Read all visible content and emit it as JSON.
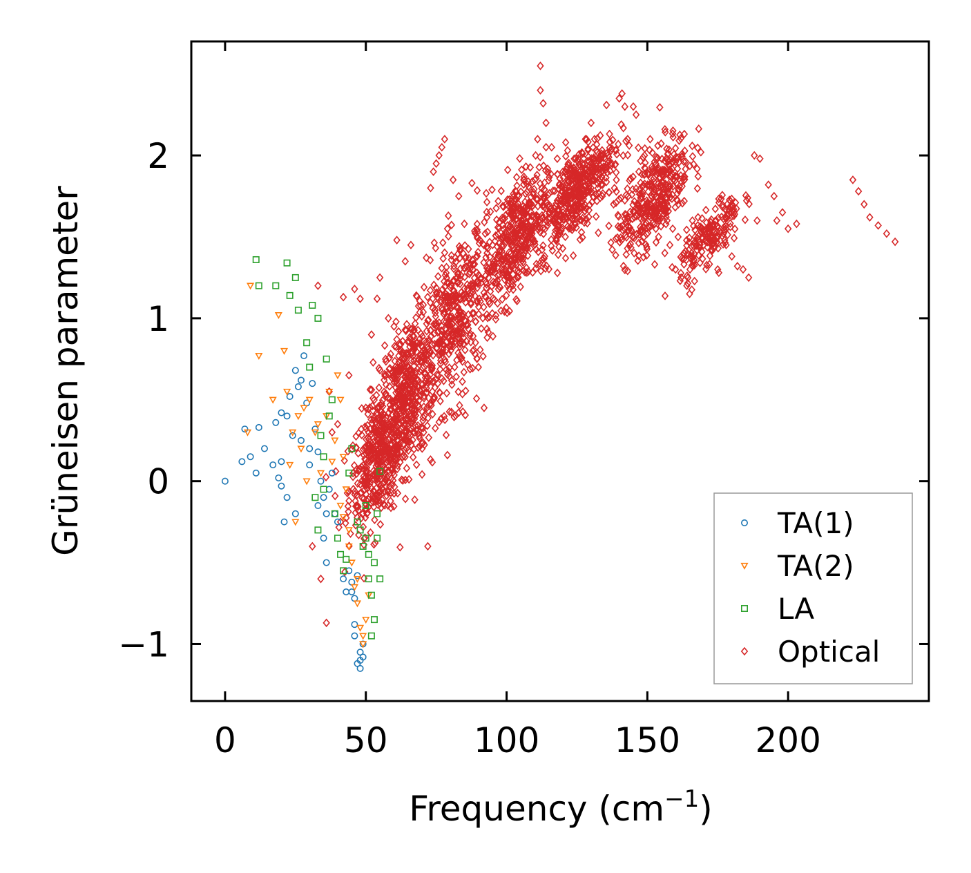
{
  "chart_data": {
    "type": "scatter",
    "title": "",
    "xlabel": "Frequency (cm",
    "xlabel_sup": "−1",
    "xlabel_end": ")",
    "ylabel": "Grüneisen parameter",
    "xlim": [
      -12,
      250
    ],
    "ylim": [
      -1.35,
      2.7
    ],
    "xticks": [
      0,
      50,
      100,
      150,
      200
    ],
    "xtick_labels": [
      "0",
      "50",
      "100",
      "150",
      "200"
    ],
    "yticks": [
      -1,
      0,
      1,
      2
    ],
    "ytick_labels": [
      "−1",
      "0",
      "1",
      "2"
    ],
    "legend_position": "lower-right",
    "series": [
      {
        "name": "TA(1)",
        "color": "#1f77b4",
        "marker": "circle",
        "points": [
          [
            0,
            0
          ],
          [
            6,
            0.12
          ],
          [
            7,
            0.32
          ],
          [
            9,
            0.15
          ],
          [
            11,
            0.05
          ],
          [
            12,
            0.33
          ],
          [
            14,
            0.2
          ],
          [
            17,
            0.1
          ],
          [
            18,
            0.36
          ],
          [
            19,
            0.02
          ],
          [
            20,
            0.42
          ],
          [
            20,
            0.12
          ],
          [
            21,
            -0.25
          ],
          [
            22,
            0.4
          ],
          [
            23,
            0.52
          ],
          [
            24,
            0.28
          ],
          [
            25,
            0.68
          ],
          [
            26,
            0.58
          ],
          [
            27,
            0.62
          ],
          [
            28,
            0.77
          ],
          [
            29,
            0.48
          ],
          [
            30,
            0.2
          ],
          [
            31,
            0.6
          ],
          [
            32,
            0.32
          ],
          [
            33,
            0.18
          ],
          [
            34,
            0.0
          ],
          [
            35,
            -0.1
          ],
          [
            36,
            -0.2
          ],
          [
            37,
            -0.05
          ],
          [
            38,
            0.05
          ],
          [
            44,
            -0.55
          ],
          [
            45,
            -0.62
          ],
          [
            45,
            -0.68
          ],
          [
            46,
            -0.72
          ],
          [
            46,
            -0.88
          ],
          [
            47,
            -0.58
          ],
          [
            48,
            -1.05
          ],
          [
            48,
            -1.1
          ],
          [
            49,
            -1.0
          ],
          [
            49,
            -1.08
          ],
          [
            48,
            -1.15
          ],
          [
            47,
            -1.12
          ],
          [
            46,
            -0.95
          ],
          [
            43,
            -0.68
          ],
          [
            42,
            -0.6
          ],
          [
            20,
            -0.03
          ],
          [
            22,
            -0.1
          ],
          [
            25,
            -0.2
          ],
          [
            27,
            0.25
          ],
          [
            30,
            0.1
          ],
          [
            35,
            -0.35
          ],
          [
            36,
            -0.5
          ],
          [
            33,
            -0.15
          ],
          [
            39,
            -0.2
          ],
          [
            40,
            -0.25
          ]
        ]
      },
      {
        "name": "TA(2)",
        "color": "#ff7f0e",
        "marker": "triangle-down",
        "points": [
          [
            8,
            0.3
          ],
          [
            9,
            1.2
          ],
          [
            12,
            0.77
          ],
          [
            17,
            0.5
          ],
          [
            19,
            1.02
          ],
          [
            21,
            0.8
          ],
          [
            22,
            0.55
          ],
          [
            24,
            0.3
          ],
          [
            25,
            -0.25
          ],
          [
            26,
            0.4
          ],
          [
            27,
            0.2
          ],
          [
            28,
            0.45
          ],
          [
            30,
            0.5
          ],
          [
            32,
            0.3
          ],
          [
            34,
            0.05
          ],
          [
            36,
            0.4
          ],
          [
            38,
            0.12
          ],
          [
            40,
            0.65
          ],
          [
            41,
            0.5
          ],
          [
            42,
            0.15
          ],
          [
            43,
            -0.05
          ],
          [
            44,
            -0.3
          ],
          [
            45,
            -0.5
          ],
          [
            47,
            -0.75
          ],
          [
            48,
            -0.9
          ],
          [
            49,
            -1.0
          ],
          [
            50,
            -0.85
          ],
          [
            46,
            -0.65
          ],
          [
            44,
            -0.4
          ],
          [
            39,
            0.25
          ],
          [
            37,
            0.55
          ],
          [
            33,
            0.35
          ],
          [
            29,
            0.0
          ],
          [
            23,
            0.1
          ],
          [
            41,
            -0.15
          ],
          [
            42,
            -0.22
          ],
          [
            47,
            -0.6
          ],
          [
            49,
            -0.95
          ],
          [
            51,
            -0.7
          ]
        ]
      },
      {
        "name": "LA",
        "color": "#2ca02c",
        "marker": "square",
        "points": [
          [
            11,
            1.36
          ],
          [
            12,
            1.2
          ],
          [
            18,
            1.2
          ],
          [
            22,
            1.34
          ],
          [
            23,
            1.14
          ],
          [
            25,
            1.25
          ],
          [
            26,
            1.05
          ],
          [
            29,
            0.85
          ],
          [
            30,
            0.7
          ],
          [
            31,
            1.08
          ],
          [
            33,
            1.0
          ],
          [
            34,
            0.28
          ],
          [
            35,
            0.15
          ],
          [
            36,
            0.75
          ],
          [
            37,
            0.4
          ],
          [
            38,
            0.5
          ],
          [
            39,
            -0.2
          ],
          [
            40,
            -0.35
          ],
          [
            41,
            -0.45
          ],
          [
            42,
            -0.55
          ],
          [
            43,
            -0.48
          ],
          [
            44,
            0.05
          ],
          [
            45,
            0.2
          ],
          [
            47,
            -0.25
          ],
          [
            48,
            -0.3
          ],
          [
            49,
            -0.4
          ],
          [
            50,
            -0.15
          ],
          [
            51,
            -0.6
          ],
          [
            52,
            -0.7
          ],
          [
            53,
            -0.5
          ],
          [
            54,
            -0.2
          ],
          [
            55,
            0.06
          ],
          [
            53,
            -0.85
          ],
          [
            52,
            -0.95
          ],
          [
            50,
            -0.35
          ],
          [
            51,
            -0.45
          ],
          [
            54,
            -0.35
          ],
          [
            55,
            -0.6
          ],
          [
            32,
            -0.1
          ],
          [
            33,
            -0.3
          ],
          [
            35,
            -0.05
          ]
        ]
      },
      {
        "name": "Optical",
        "color": "#d62728",
        "marker": "diamond",
        "points": [
          [
            31,
            -0.4
          ],
          [
            33,
            1.2
          ],
          [
            34,
            -0.6
          ],
          [
            36,
            -0.87
          ],
          [
            37,
            0.55
          ],
          [
            38,
            0.3
          ],
          [
            40,
            0.35
          ],
          [
            41,
            -0.25
          ],
          [
            42,
            1.13
          ],
          [
            44,
            0.65
          ],
          [
            46,
            1.18
          ],
          [
            48,
            1.12
          ],
          [
            50,
            0.45
          ],
          [
            52,
            0.9
          ],
          [
            54,
            1.12
          ],
          [
            55,
            1.25
          ],
          [
            57,
            0.75
          ],
          [
            58,
            1.0
          ],
          [
            60,
            0.95
          ],
          [
            61,
            1.48
          ],
          [
            62,
            0.55
          ],
          [
            64,
            1.35
          ],
          [
            66,
            1.45
          ],
          [
            68,
            0.85
          ],
          [
            70,
            0.2
          ],
          [
            72,
            -0.4
          ],
          [
            73,
            1.8
          ],
          [
            74,
            1.9
          ],
          [
            75,
            1.95
          ],
          [
            76,
            2.0
          ],
          [
            77,
            2.05
          ],
          [
            78,
            2.1
          ],
          [
            79,
            1.55
          ],
          [
            81,
            1.85
          ],
          [
            83,
            1.75
          ],
          [
            85,
            1.58
          ],
          [
            88,
            1.3
          ],
          [
            90,
            0.7
          ],
          [
            92,
            0.45
          ],
          [
            93,
            1.62
          ],
          [
            95,
            1.45
          ],
          [
            96,
            1.22
          ],
          [
            98,
            1.35
          ],
          [
            101,
            1.18
          ],
          [
            104,
            1.42
          ],
          [
            106,
            1.55
          ],
          [
            108,
            1.7
          ],
          [
            110,
            1.85
          ],
          [
            111,
            2.1
          ],
          [
            112,
            2.4
          ],
          [
            112,
            2.55
          ],
          [
            113,
            2.32
          ],
          [
            114,
            2.2
          ],
          [
            116,
            2.05
          ],
          [
            118,
            1.98
          ],
          [
            120,
            1.9
          ],
          [
            121,
            2.08
          ],
          [
            123,
            1.85
          ],
          [
            125,
            1.75
          ],
          [
            127,
            1.95
          ],
          [
            128,
            2.1
          ],
          [
            130,
            2.2
          ],
          [
            132,
            1.9
          ],
          [
            134,
            1.75
          ],
          [
            136,
            2.0
          ],
          [
            138,
            1.7
          ],
          [
            139,
            1.85
          ],
          [
            140,
            2.35
          ],
          [
            141,
            2.38
          ],
          [
            142,
            2.3
          ],
          [
            143,
            2.1
          ],
          [
            145,
            2.3
          ],
          [
            146,
            2.25
          ],
          [
            147,
            1.9
          ],
          [
            148,
            1.65
          ],
          [
            149,
            2.0
          ],
          [
            150,
            1.7
          ],
          [
            151,
            2.1
          ],
          [
            152,
            1.8
          ],
          [
            153,
            1.55
          ],
          [
            154,
            1.5
          ],
          [
            155,
            1.75
          ],
          [
            156,
            1.9
          ],
          [
            157,
            1.6
          ],
          [
            158,
            1.45
          ],
          [
            159,
            1.55
          ],
          [
            160,
            1.3
          ],
          [
            161,
            1.7
          ],
          [
            162,
            1.25
          ],
          [
            163,
            1.4
          ],
          [
            164,
            1.2
          ],
          [
            165,
            1.15
          ],
          [
            166,
            1.6
          ],
          [
            167,
            1.5
          ],
          [
            168,
            1.62
          ],
          [
            170,
            1.45
          ],
          [
            172,
            1.55
          ],
          [
            175,
            1.3
          ],
          [
            178,
            1.45
          ],
          [
            180,
            1.38
          ],
          [
            182,
            1.32
          ],
          [
            184,
            1.3
          ],
          [
            186,
            1.25
          ],
          [
            188,
            2.0
          ],
          [
            189,
            1.6
          ],
          [
            190,
            1.98
          ],
          [
            193,
            1.82
          ],
          [
            195,
            1.75
          ],
          [
            196,
            1.6
          ],
          [
            198,
            1.65
          ],
          [
            200,
            1.55
          ],
          [
            203,
            1.58
          ],
          [
            223,
            1.85
          ],
          [
            225,
            1.78
          ],
          [
            227,
            1.7
          ],
          [
            229,
            1.62
          ],
          [
            232,
            1.57
          ],
          [
            235,
            1.52
          ],
          [
            238,
            1.47
          ]
        ],
        "dense_regions": [
          {
            "x_center": 55,
            "x_spread": 10,
            "y_center": 0.15,
            "y_spread": 0.38,
            "count": 480
          },
          {
            "x_center": 65,
            "x_spread": 9,
            "y_center": 0.55,
            "y_spread": 0.45,
            "count": 420
          },
          {
            "x_center": 82,
            "x_spread": 12,
            "y_center": 1.0,
            "y_spread": 0.5,
            "count": 420
          },
          {
            "x_center": 103,
            "x_spread": 10,
            "y_center": 1.5,
            "y_spread": 0.35,
            "count": 420
          },
          {
            "x_center": 125,
            "x_spread": 12,
            "y_center": 1.78,
            "y_spread": 0.25,
            "count": 460
          },
          {
            "x_center": 152,
            "x_spread": 12,
            "y_center": 1.75,
            "y_spread": 0.28,
            "count": 380
          },
          {
            "x_center": 172,
            "x_spread": 10,
            "y_center": 1.5,
            "y_spread": 0.18,
            "count": 180
          }
        ]
      }
    ]
  }
}
